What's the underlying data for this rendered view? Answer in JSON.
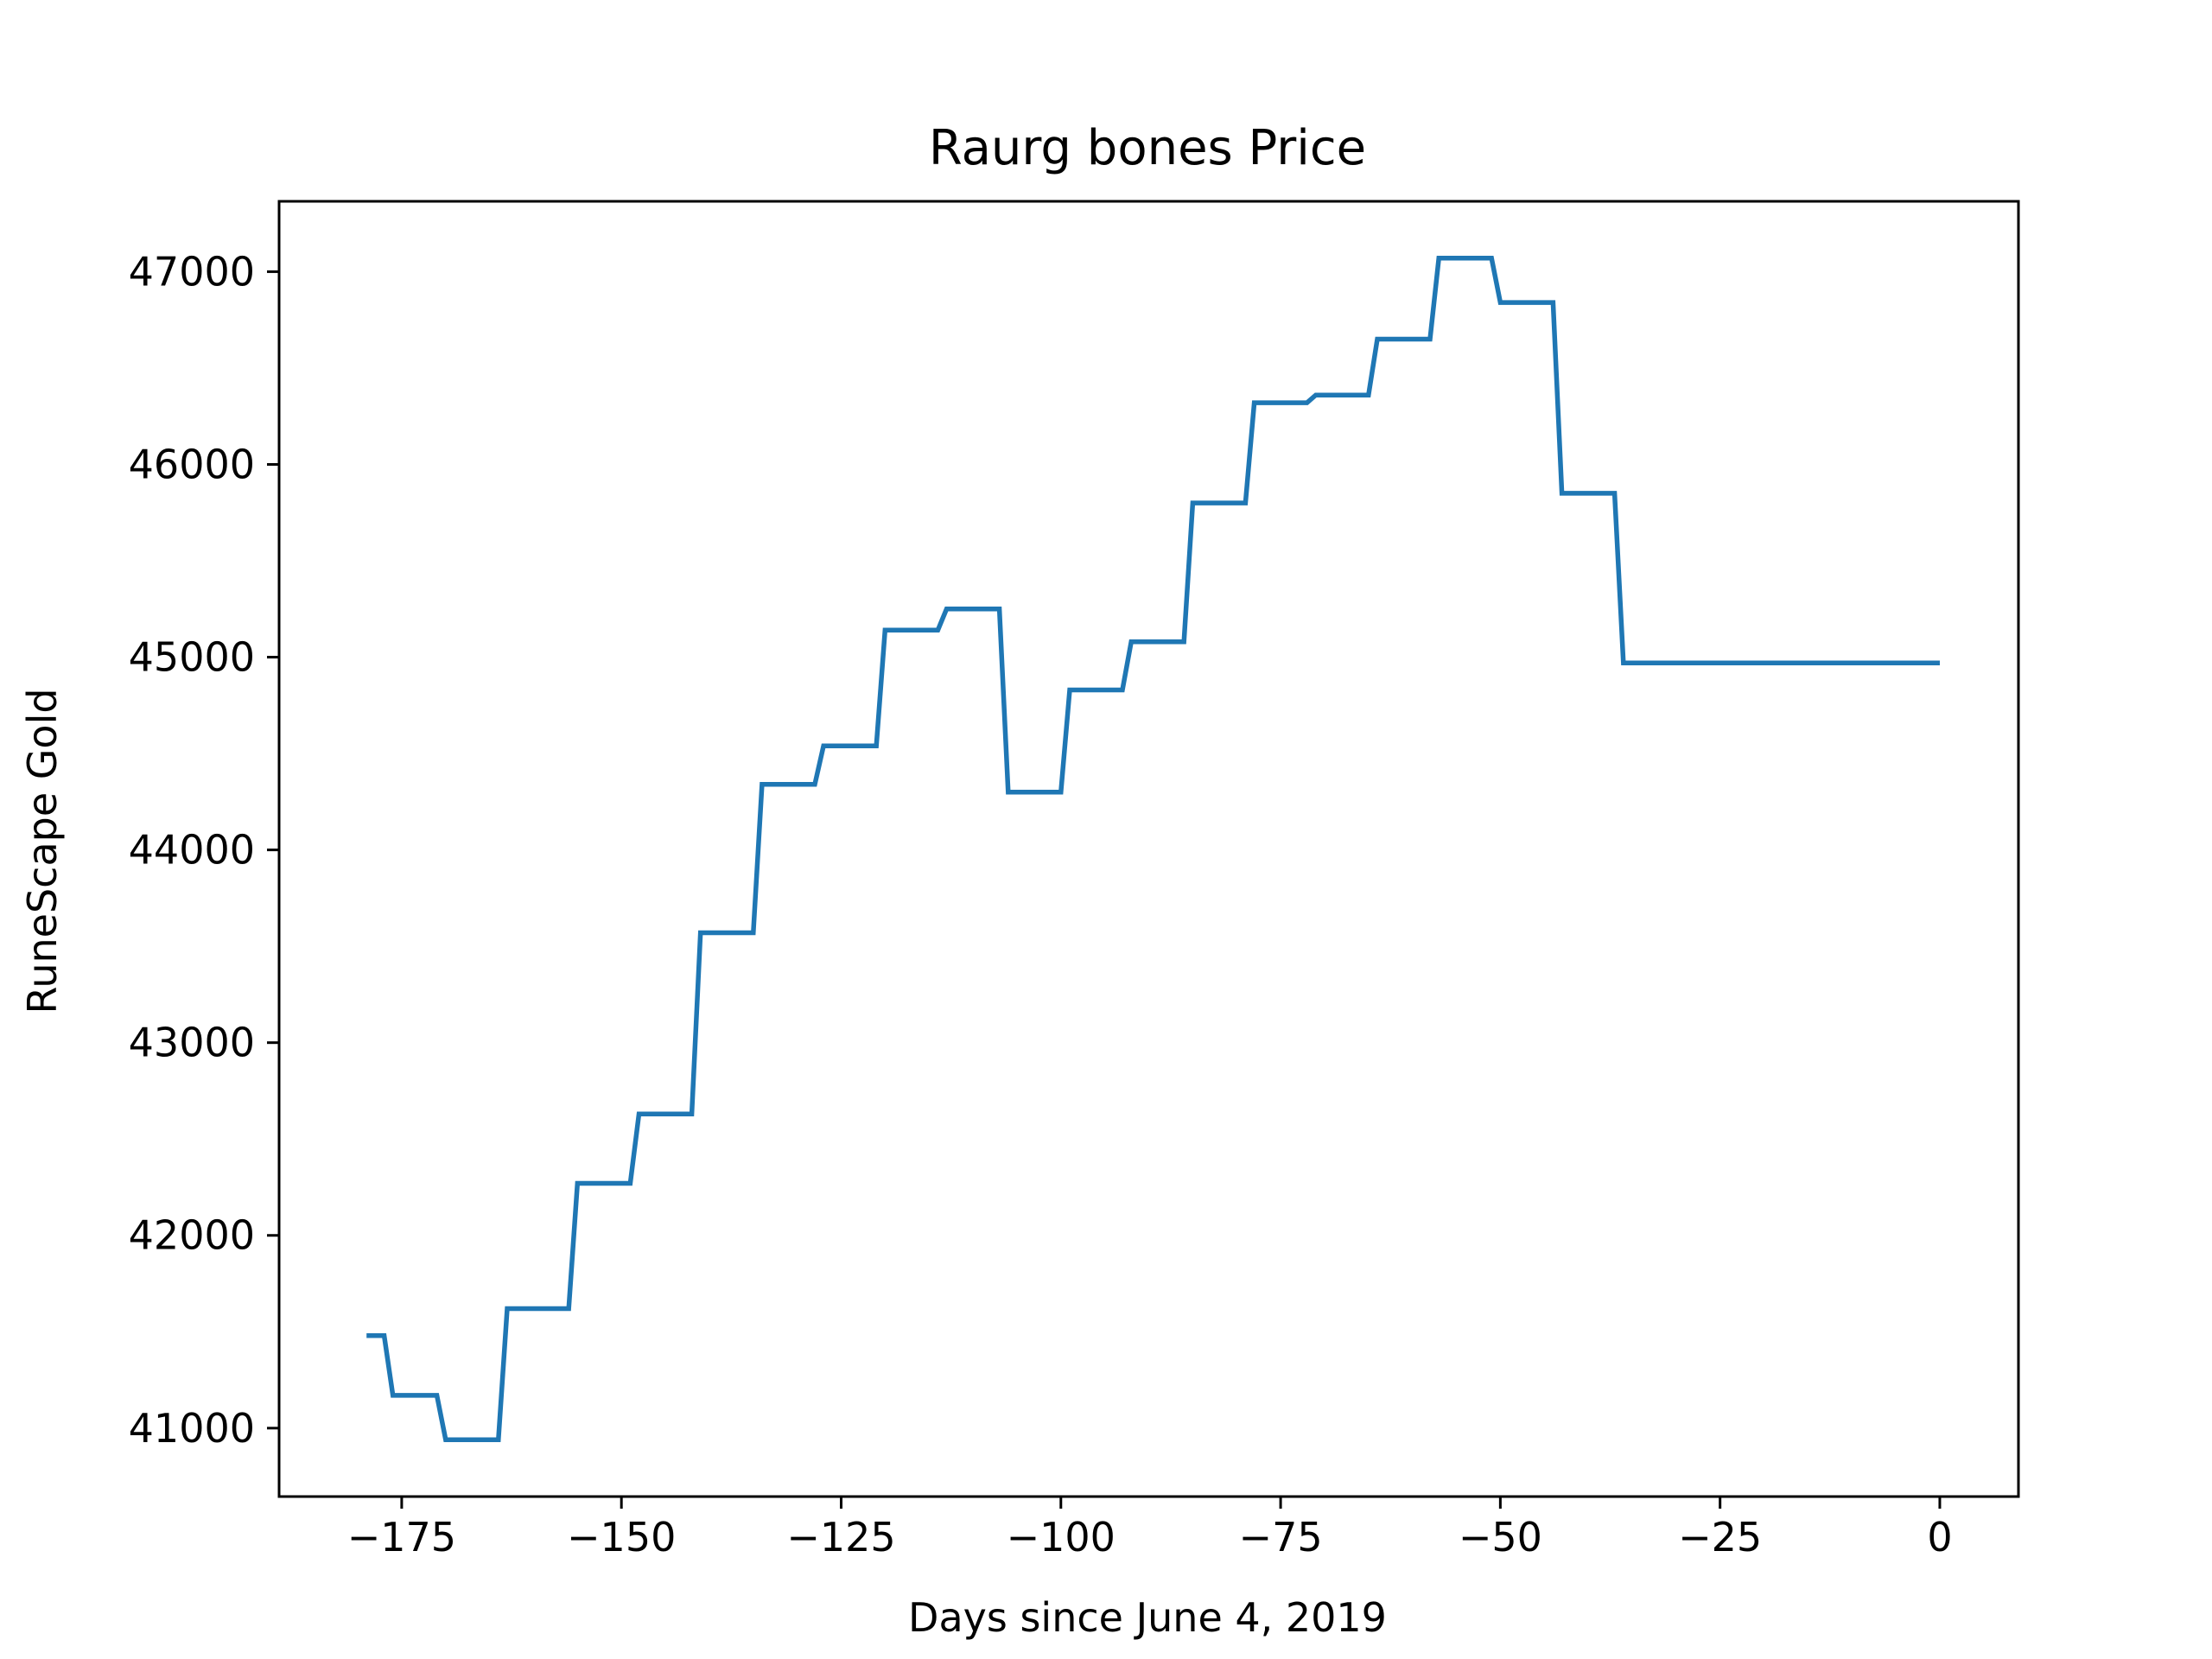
{
  "chart_data": {
    "type": "line",
    "title": "Raurg bones Price",
    "xlabel": "Days since June 4, 2019",
    "ylabel": "RuneScape Gold",
    "xlim": [
      -188.95,
      8.95
    ],
    "ylim": [
      40645,
      47365
    ],
    "xticks": [
      -175,
      -150,
      -125,
      -100,
      -75,
      -50,
      -25,
      0
    ],
    "xtick_labels": [
      "−175",
      "−150",
      "−125",
      "−100",
      "−75",
      "−50",
      "−25",
      "0"
    ],
    "yticks": [
      41000,
      42000,
      43000,
      44000,
      45000,
      46000,
      47000
    ],
    "ytick_labels": [
      "41000",
      "42000",
      "43000",
      "44000",
      "45000",
      "46000",
      "47000"
    ],
    "grid": false,
    "series": [
      {
        "color": "#1f77b4",
        "x": [
          -179,
          -177,
          -176,
          -171,
          -170,
          -164,
          -163,
          -156,
          -155,
          -149,
          -148,
          -142,
          -141,
          -135,
          -134,
          -128,
          -127,
          -121,
          -120,
          -114,
          -113,
          -107,
          -106,
          -100,
          -99,
          -93,
          -92,
          -86,
          -85,
          -79,
          -78,
          -72,
          -71,
          -65,
          -64,
          -58,
          -57,
          -51,
          -50,
          -44,
          -43,
          -37,
          -36,
          -30,
          -29,
          -23,
          -22,
          -16,
          -15,
          -9,
          -8,
          -2,
          -1,
          0
        ],
        "y": [
          41480,
          41480,
          41170,
          41170,
          40940,
          40940,
          41620,
          41620,
          42270,
          42270,
          42630,
          42630,
          43570,
          43570,
          44340,
          44340,
          44540,
          44540,
          45140,
          45140,
          45250,
          45250,
          44300,
          44300,
          44830,
          44830,
          45080,
          45080,
          45800,
          45800,
          46320,
          46320,
          46360,
          46360,
          46650,
          46650,
          47070,
          47070,
          46840,
          46840,
          45850,
          45850,
          44970,
          44970,
          44970,
          44970,
          44970,
          44970,
          44970,
          44970,
          44970,
          44970,
          44970,
          44970
        ]
      }
    ]
  }
}
